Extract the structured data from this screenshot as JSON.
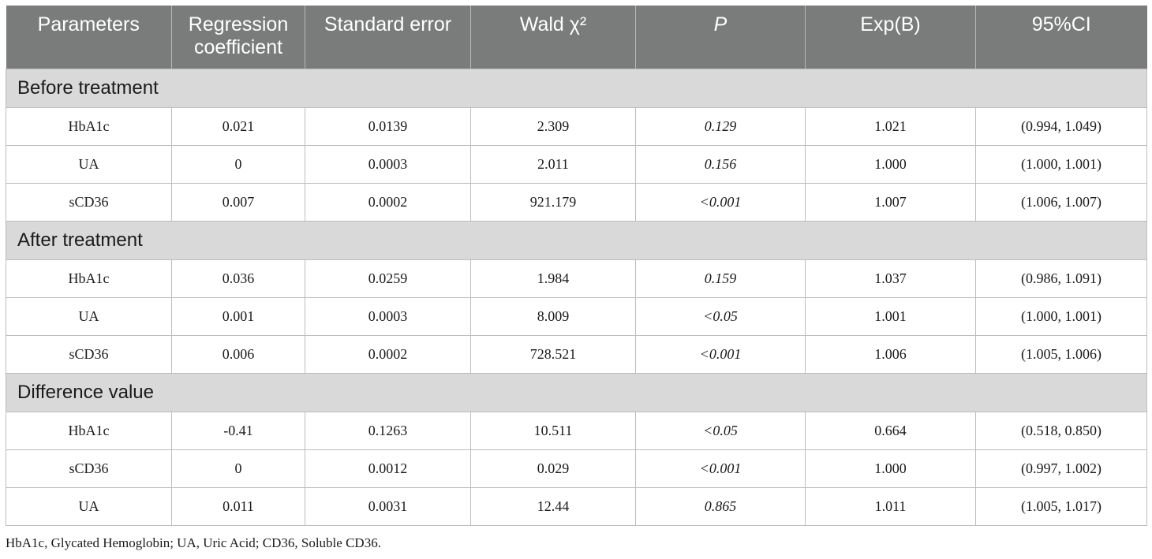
{
  "table": {
    "headers": [
      {
        "label": "Parameters",
        "italic": false
      },
      {
        "label": "Regression coefficient",
        "italic": false
      },
      {
        "label": "Standard error",
        "italic": false
      },
      {
        "label": "Wald χ²",
        "italic": false
      },
      {
        "label": "P",
        "italic": true
      },
      {
        "label": "Exp(B)",
        "italic": false
      },
      {
        "label": "95%CI",
        "italic": false
      }
    ],
    "groups": [
      {
        "title": "Before treatment",
        "rows": [
          [
            "HbA1c",
            "0.021",
            "0.0139",
            "2.309",
            "0.129",
            "1.021",
            "(0.994, 1.049)"
          ],
          [
            "UA",
            "0",
            "0.0003",
            "2.011",
            "0.156",
            "1.000",
            "(1.000, 1.001)"
          ],
          [
            "sCD36",
            "0.007",
            "0.0002",
            "921.179",
            "<0.001",
            "1.007",
            "(1.006, 1.007)"
          ]
        ]
      },
      {
        "title": "After treatment",
        "rows": [
          [
            "HbA1c",
            "0.036",
            "0.0259",
            "1.984",
            "0.159",
            "1.037",
            "(0.986, 1.091)"
          ],
          [
            "UA",
            "0.001",
            "0.0003",
            "8.009",
            "<0.05",
            "1.001",
            "(1.000, 1.001)"
          ],
          [
            "sCD36",
            "0.006",
            "0.0002",
            "728.521",
            "<0.001",
            "1.006",
            "(1.005, 1.006)"
          ]
        ]
      },
      {
        "title": "Difference value",
        "rows": [
          [
            "HbA1c",
            "-0.41",
            "0.1263",
            "10.511",
            "<0.05",
            "0.664",
            "(0.518, 0.850)"
          ],
          [
            "sCD36",
            "0",
            "0.0012",
            "0.029",
            "<0.001",
            "1.000",
            "(0.997, 1.002)"
          ],
          [
            "UA",
            "0.011",
            "0.0031",
            "12.44",
            "0.865",
            "1.011",
            "(1.005, 1.017)"
          ]
        ]
      }
    ]
  },
  "footnote": "HbA1c, Glycated Hemoglobin; UA, Uric Acid; CD36, Soluble CD36.",
  "colors": {
    "header_bg": "#7a7c7b",
    "header_text": "#ffffff",
    "section_bg": "#d9d9d9",
    "border": "#bdbdbd"
  }
}
